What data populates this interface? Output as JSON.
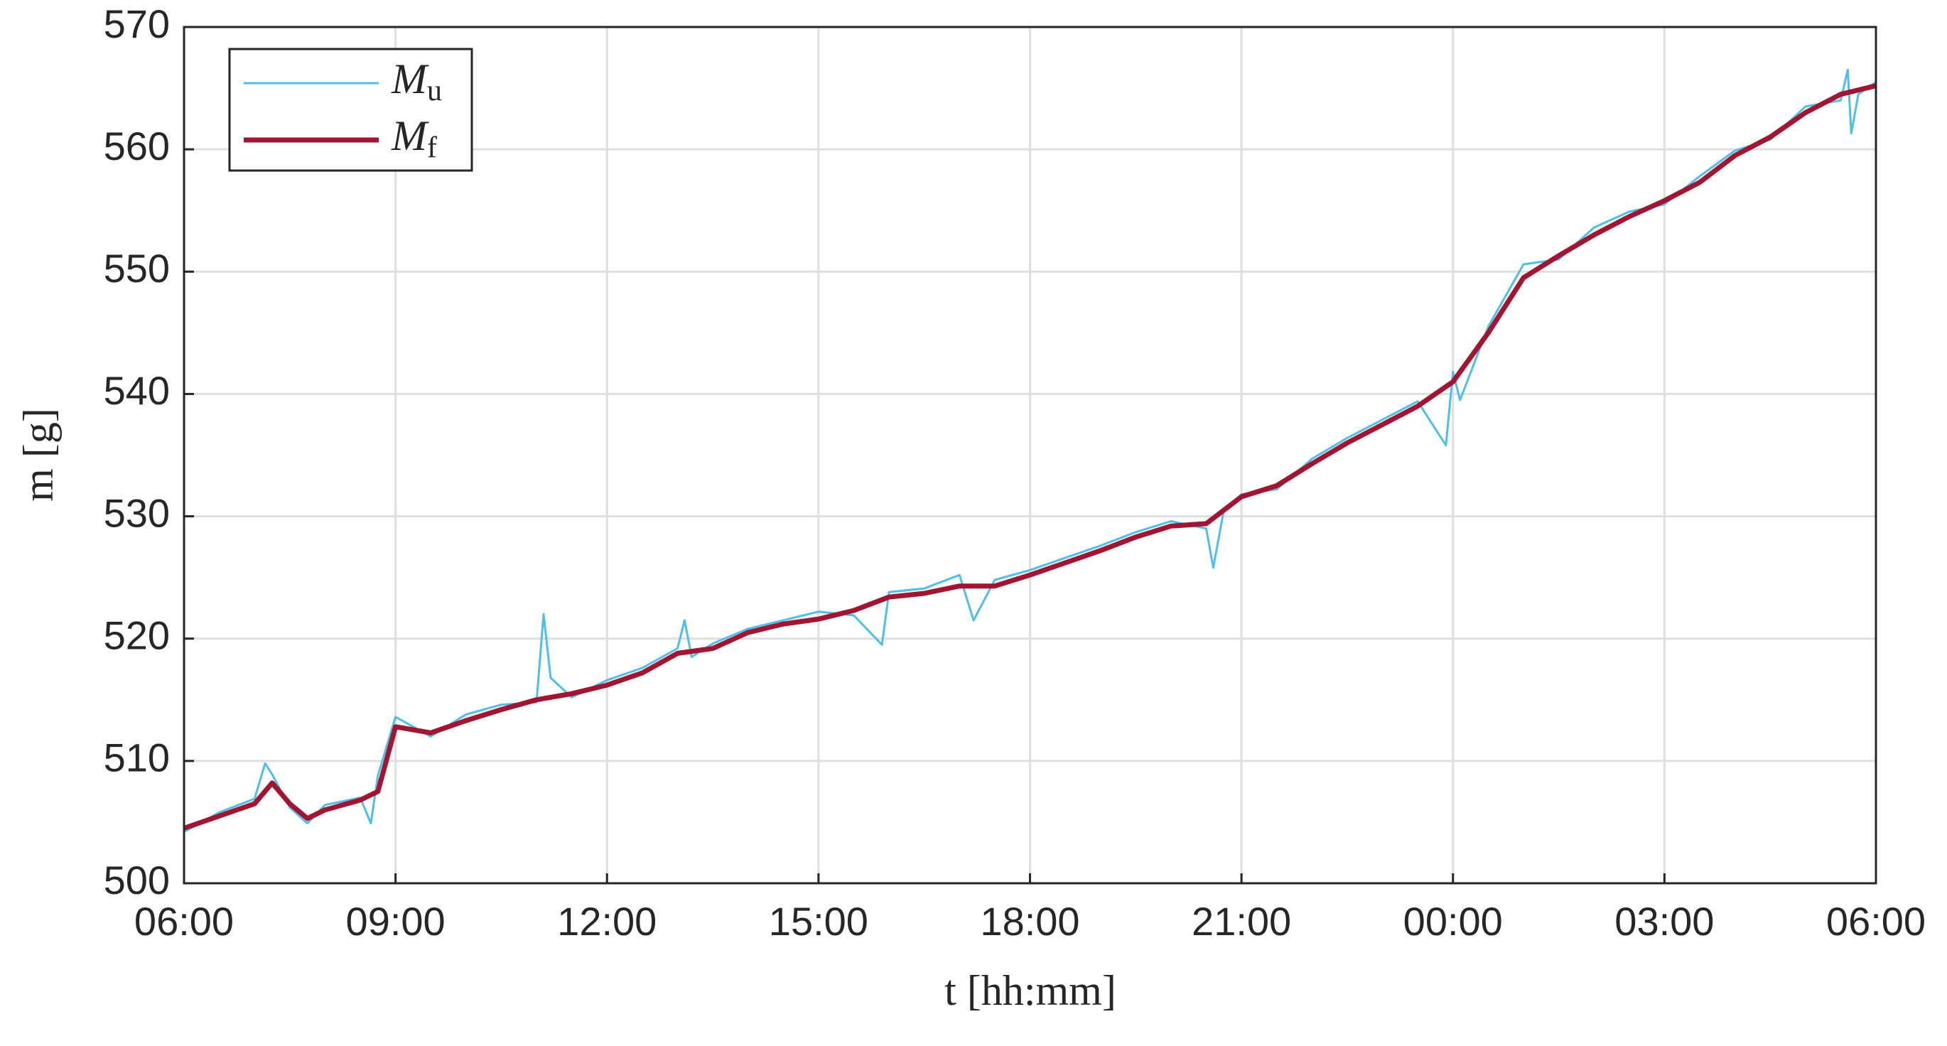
{
  "chart_data": {
    "type": "line",
    "xlabel": "t [hh:mm]",
    "ylabel": "m [g]",
    "xlim": [
      0,
      24
    ],
    "ylim": [
      500,
      570
    ],
    "xticks": [
      {
        "value": 0,
        "label": "06:00"
      },
      {
        "value": 3,
        "label": "09:00"
      },
      {
        "value": 6,
        "label": "12:00"
      },
      {
        "value": 9,
        "label": "15:00"
      },
      {
        "value": 12,
        "label": "18:00"
      },
      {
        "value": 15,
        "label": "21:00"
      },
      {
        "value": 18,
        "label": "00:00"
      },
      {
        "value": 21,
        "label": "03:00"
      },
      {
        "value": 24,
        "label": "06:00"
      }
    ],
    "yticks": [
      500,
      510,
      520,
      530,
      540,
      550,
      560,
      570
    ],
    "grid": true,
    "legend": "upper left",
    "series": [
      {
        "name": "Mu",
        "color": "#4dbeee",
        "width": 3,
        "x": [
          0,
          0.5,
          1.0,
          1.15,
          1.25,
          1.5,
          1.75,
          2.0,
          2.5,
          2.65,
          2.75,
          3.0,
          3.5,
          4.0,
          4.5,
          5.0,
          5.1,
          5.2,
          5.5,
          6.0,
          6.5,
          7.0,
          7.1,
          7.2,
          7.5,
          8.0,
          8.5,
          9.0,
          9.5,
          9.9,
          10.0,
          10.5,
          11.0,
          11.2,
          11.5,
          12.0,
          12.5,
          13.0,
          13.5,
          14.0,
          14.5,
          14.6,
          14.75,
          15.0,
          15.5,
          16.0,
          16.5,
          17.0,
          17.5,
          17.9,
          18.0,
          18.1,
          18.5,
          19.0,
          19.5,
          20.0,
          20.5,
          21.0,
          21.5,
          22.0,
          22.5,
          23.0,
          23.5,
          23.6,
          23.65,
          23.75,
          24.0
        ],
        "values": [
          504.2,
          505.8,
          506.9,
          509.8,
          508.9,
          506.2,
          504.9,
          506.4,
          507.0,
          504.9,
          508.8,
          513.6,
          512.0,
          513.8,
          514.6,
          514.8,
          522.0,
          516.8,
          515.2,
          516.6,
          517.6,
          519.2,
          521.5,
          518.5,
          519.6,
          520.8,
          521.5,
          522.2,
          521.9,
          519.5,
          523.8,
          524.1,
          525.2,
          521.5,
          524.8,
          525.6,
          526.6,
          527.6,
          528.7,
          529.6,
          529.0,
          525.8,
          530.5,
          531.8,
          532.2,
          534.7,
          536.4,
          537.9,
          539.4,
          535.8,
          541.8,
          539.5,
          545.5,
          550.6,
          551.0,
          553.6,
          554.9,
          555.5,
          557.8,
          559.9,
          560.8,
          563.5,
          564.0,
          566.5,
          561.3,
          564.5,
          565.5
        ]
      },
      {
        "name": "Mf",
        "color": "#a2142f",
        "width": 7,
        "x": [
          0,
          0.5,
          1.0,
          1.25,
          1.5,
          1.75,
          2.0,
          2.5,
          2.75,
          3.0,
          3.5,
          4.0,
          4.5,
          5.0,
          5.5,
          6.0,
          6.5,
          7.0,
          7.5,
          8.0,
          8.5,
          9.0,
          9.5,
          10.0,
          10.5,
          11.0,
          11.5,
          12.0,
          12.5,
          13.0,
          13.5,
          14.0,
          14.5,
          15.0,
          15.5,
          16.0,
          16.5,
          17.0,
          17.5,
          18.0,
          18.5,
          19.0,
          19.5,
          20.0,
          20.5,
          21.0,
          21.5,
          22.0,
          22.5,
          23.0,
          23.5,
          24.0
        ],
        "values": [
          504.5,
          505.5,
          506.5,
          508.2,
          506.5,
          505.3,
          506.0,
          506.8,
          507.5,
          512.8,
          512.3,
          513.3,
          514.2,
          515.0,
          515.5,
          516.2,
          517.2,
          518.8,
          519.2,
          520.5,
          521.2,
          521.6,
          522.3,
          523.4,
          523.7,
          524.3,
          524.3,
          525.2,
          526.2,
          527.2,
          528.3,
          529.2,
          529.4,
          531.6,
          532.5,
          534.3,
          536.0,
          537.5,
          539.0,
          541.0,
          545.0,
          549.5,
          551.3,
          553.0,
          554.5,
          555.8,
          557.3,
          559.5,
          561.0,
          563.0,
          564.5,
          565.2
        ]
      }
    ]
  }
}
